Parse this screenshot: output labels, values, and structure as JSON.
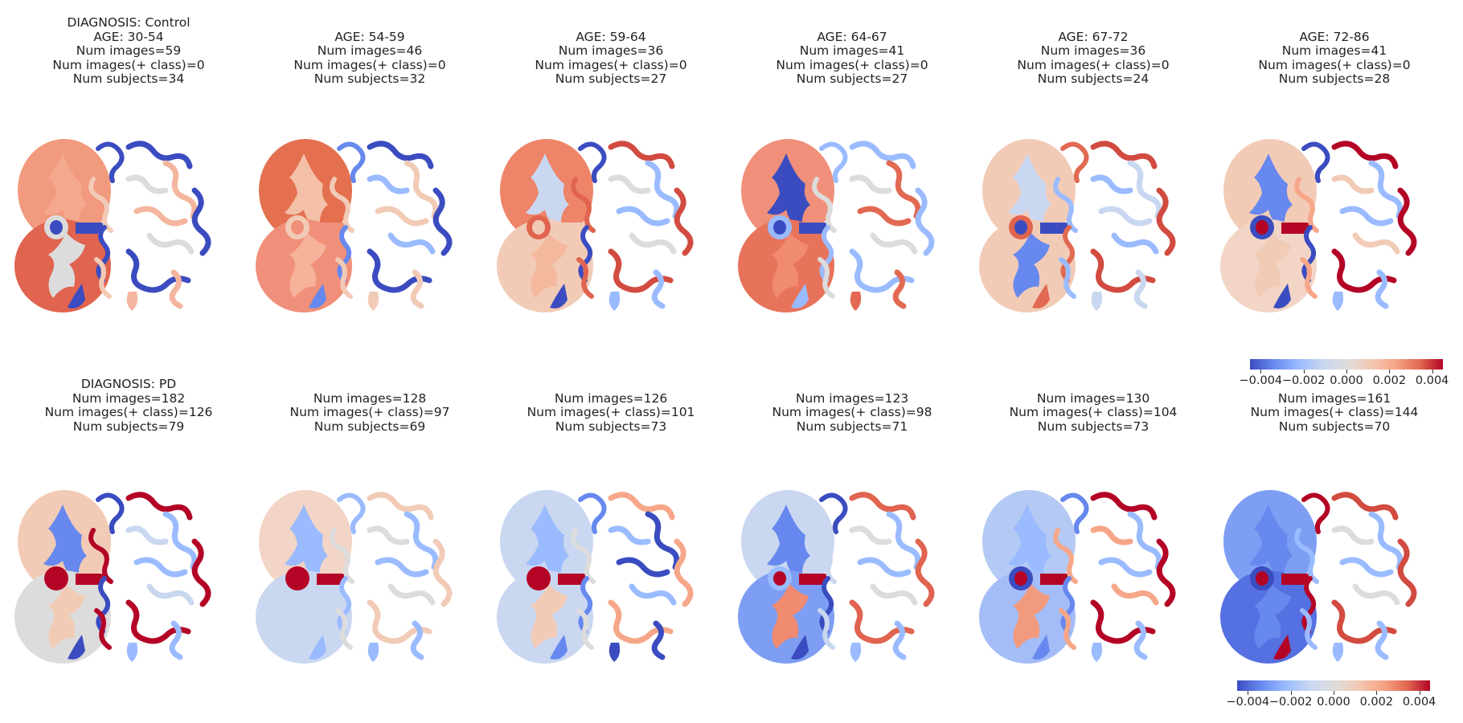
{
  "palette": {
    "blue_dark": "#3b4cc0",
    "blue": "#6788ee",
    "blue_light": "#9abbff",
    "blue_pale": "#c9d7f0",
    "neutral": "#dddcdc",
    "red_pale": "#f2cbb7",
    "red_light": "#f7a789",
    "red": "#e26952",
    "red_dark": "#b40426"
  },
  "rows": [
    {
      "diagnosis_label": "DIAGNOSIS: Control",
      "panels": [
        {
          "age": "AGE: 30-54",
          "images": "Num images=59",
          "pos_class": "Num images(+ class)=0",
          "subjects": "Num subjects=34",
          "colors": {
            "hemi_a": "#f29a7e",
            "hemi_a_inner": "#f4a88e",
            "hemi_b": "#e0644f",
            "hemi_b_inner": "#dddcdc",
            "core": "#3b4cc0",
            "ring": "#dddcdc",
            "gyri_l1": "#3b4cc0",
            "gyri_l2": "#f2cbb7",
            "gyri_r1": "#3b4cc0",
            "gyri_r2": "#f4b69e",
            "gyri_r3": "#dddcdc"
          }
        },
        {
          "age": "AGE: 54-59",
          "images": "Num images=46",
          "pos_class": "Num images(+ class)=0",
          "subjects": "Num subjects=32",
          "colors": {
            "hemi_a": "#e4704f",
            "hemi_a_inner": "#f4c0a8",
            "hemi_b": "#f0907a",
            "hemi_b_inner": "#f6b29b",
            "core": "#f0907a",
            "ring": "#f2cbb7",
            "gyri_l1": "#6788ee",
            "gyri_l2": "#f2cbb7",
            "gyri_r1": "#3b4cc0",
            "gyri_r2": "#f2cbb7",
            "gyri_r3": "#9abbff"
          }
        },
        {
          "age": "AGE: 59-64",
          "images": "Num images=36",
          "pos_class": "Num images(+ class)=0",
          "subjects": "Num subjects=27",
          "colors": {
            "hemi_a": "#ee8468",
            "hemi_a_inner": "#c9d7f0",
            "hemi_b": "#f2cbb7",
            "hemi_b_inner": "#f4b89f",
            "core": "#f2cbb7",
            "ring": "#e0644f",
            "gyri_l1": "#3b4cc0",
            "gyri_l2": "#e0644f",
            "gyri_r1": "#d24b40",
            "gyri_r2": "#9abbff",
            "gyri_r3": "#dddcdc"
          }
        },
        {
          "age": "AGE: 64-67",
          "images": "Num images=41",
          "pos_class": "Num images(+ class)=0",
          "subjects": "Num subjects=27",
          "colors": {
            "hemi_a": "#f0907a",
            "hemi_a_inner": "#3b4cc0",
            "hemi_b": "#e7735a",
            "hemi_b_inner": "#f08a70",
            "core": "#3b4cc0",
            "ring": "#9abbff",
            "gyri_l1": "#9abbff",
            "gyri_l2": "#dddcdc",
            "gyri_r1": "#9abbff",
            "gyri_r2": "#e26952",
            "gyri_r3": "#dddcdc"
          }
        },
        {
          "age": "AGE: 67-72",
          "images": "Num images=36",
          "pos_class": "Num images(+ class)=0",
          "subjects": "Num subjects=24",
          "colors": {
            "hemi_a": "#f2cbb7",
            "hemi_a_inner": "#c9d7f0",
            "hemi_b": "#f2cbb7",
            "hemi_b_inner": "#6788ee",
            "core": "#3b4cc0",
            "ring": "#e0644f",
            "gyri_l1": "#e26952",
            "gyri_l2": "#9abbff",
            "gyri_r1": "#d24b40",
            "gyri_r2": "#c9d7f0",
            "gyri_r3": "#9abbff"
          }
        },
        {
          "age": "AGE: 72-86",
          "images": "Num images=41",
          "pos_class": "Num images(+ class)=0",
          "subjects": "Num subjects=28",
          "colors": {
            "hemi_a": "#f2cbb7",
            "hemi_a_inner": "#6788ee",
            "hemi_b": "#f2d5c6",
            "hemi_b_inner": "#f2cbb7",
            "core": "#b40426",
            "ring": "#3b4cc0",
            "gyri_l1": "#3b4cc0",
            "gyri_l2": "#f7a789",
            "gyri_r1": "#b40426",
            "gyri_r2": "#9abbff",
            "gyri_r3": "#f2cbb7"
          }
        }
      ]
    },
    {
      "diagnosis_label": "DIAGNOSIS: PD",
      "panels": [
        {
          "age": "",
          "images": "Num images=182",
          "pos_class": "Num images(+ class)=126",
          "subjects": "Num subjects=79",
          "colors": {
            "hemi_a": "#f2cbb7",
            "hemi_a_inner": "#6788ee",
            "hemi_b": "#dddcdc",
            "hemi_b_inner": "#f2cbb7",
            "core": "#b40426",
            "ring": "#b40426",
            "gyri_l1": "#3b4cc0",
            "gyri_l2": "#b40426",
            "gyri_r1": "#b40426",
            "gyri_r2": "#9abbff",
            "gyri_r3": "#c9d7f0"
          }
        },
        {
          "age": "",
          "images": "Num images=128",
          "pos_class": "Num images(+ class)=97",
          "subjects": "Num subjects=69",
          "colors": {
            "hemi_a": "#f2d5c6",
            "hemi_a_inner": "#9abbff",
            "hemi_b": "#c9d7f0",
            "hemi_b_inner": "#c9d7f0",
            "core": "#b40426",
            "ring": "#b40426",
            "gyri_l1": "#9abbff",
            "gyri_l2": "#dddcdc",
            "gyri_r1": "#f2cbb7",
            "gyri_r2": "#9abbff",
            "gyri_r3": "#dddcdc"
          }
        },
        {
          "age": "",
          "images": "Num images=126",
          "pos_class": "Num images(+ class)=101",
          "subjects": "Num subjects=73",
          "colors": {
            "hemi_a": "#c9d7f0",
            "hemi_a_inner": "#9abbff",
            "hemi_b": "#c9d7f0",
            "hemi_b_inner": "#f2cbb7",
            "core": "#b40426",
            "ring": "#b40426",
            "gyri_l1": "#6788ee",
            "gyri_l2": "#dddcdc",
            "gyri_r1": "#f7a789",
            "gyri_r2": "#3b4cc0",
            "gyri_r3": "#9abbff"
          }
        },
        {
          "age": "",
          "images": "Num images=123",
          "pos_class": "Num images(+ class)=98",
          "subjects": "Num subjects=71",
          "colors": {
            "hemi_a": "#c9d7f0",
            "hemi_a_inner": "#6788ee",
            "hemi_b": "#7d9ef3",
            "hemi_b_inner": "#f08a70",
            "core": "#b40426",
            "ring": "#9abbff",
            "gyri_l1": "#3b4cc0",
            "gyri_l2": "#c9d7f0",
            "gyri_r1": "#e0644f",
            "gyri_r2": "#9abbff",
            "gyri_r3": "#dddcdc"
          }
        },
        {
          "age": "",
          "images": "Num images=130",
          "pos_class": "Num images(+ class)=104",
          "subjects": "Num subjects=73",
          "colors": {
            "hemi_a": "#b4c9f3",
            "hemi_a_inner": "#9abbff",
            "hemi_b": "#a4bdf8",
            "hemi_b_inner": "#f29a7e",
            "core": "#b40426",
            "ring": "#3b4cc0",
            "gyri_l1": "#6788ee",
            "gyri_l2": "#f7a789",
            "gyri_r1": "#b40426",
            "gyri_r2": "#9abbff",
            "gyri_r3": "#f7a789"
          }
        },
        {
          "age": "",
          "images": "Num images=161",
          "pos_class": "Num images(+ class)=144",
          "subjects": "Num subjects=70",
          "colors": {
            "hemi_a": "#7d9ef3",
            "hemi_a_inner": "#6788ee",
            "hemi_b": "#5570e0",
            "hemi_b_inner": "#6788ee",
            "core": "#b40426",
            "ring": "#3b4cc0",
            "gyri_l1": "#b40426",
            "gyri_l2": "#9abbff",
            "gyri_r1": "#d24b40",
            "gyri_r2": "#9abbff",
            "gyri_r3": "#dddcdc"
          }
        }
      ]
    }
  ],
  "colorbar": {
    "colormap": "coolwarm",
    "range": [
      -0.0045,
      0.0045
    ],
    "ticks": [
      "−0.004",
      "−0.002",
      "0.000",
      "0.002",
      "0.004"
    ],
    "tick_values": [
      -0.004,
      -0.002,
      0.0,
      0.002,
      0.004
    ]
  }
}
